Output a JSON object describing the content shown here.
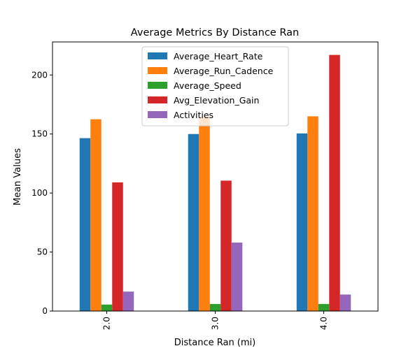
{
  "chart_data": {
    "type": "bar",
    "title": "Average Metrics By Distance Ran",
    "xlabel": "Distance Ran (mi)",
    "ylabel": "Mean Values",
    "categories": [
      "2.0",
      "3.0",
      "4.0"
    ],
    "ylim": [
      0,
      228
    ],
    "yticks": [
      0,
      50,
      100,
      150,
      200
    ],
    "grid": false,
    "legend_position": "upper center",
    "series": [
      {
        "name": "Average_Heart_Rate",
        "color": "#1f77b4",
        "values": [
          146.5,
          150.0,
          150.5
        ]
      },
      {
        "name": "Average_Run_Cadence",
        "color": "#ff7f0e",
        "values": [
          162.5,
          164.5,
          165.0
        ]
      },
      {
        "name": "Average_Speed",
        "color": "#2ca02c",
        "values": [
          5.5,
          6.0,
          6.0
        ]
      },
      {
        "name": "Avg_Elevation_Gain",
        "color": "#d62728",
        "values": [
          109.0,
          110.5,
          217.0
        ]
      },
      {
        "name": "Activities",
        "color": "#9467bd",
        "values": [
          16.5,
          58.0,
          14.0
        ]
      }
    ]
  }
}
